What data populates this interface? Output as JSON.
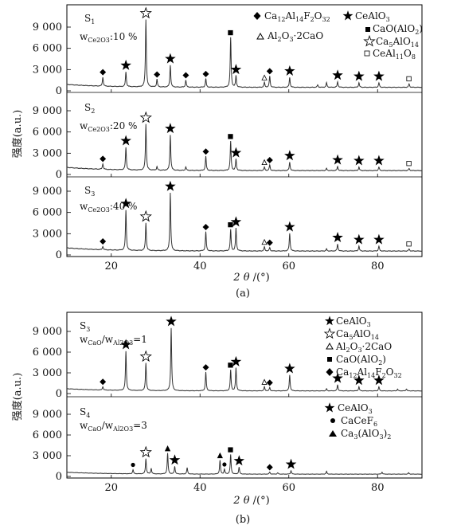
{
  "chart_data": [
    {
      "type": "line",
      "figure_label": "(a)",
      "xlabel": "2θ/(°)",
      "ylabel": "强度(a.u.)",
      "xlim": [
        10,
        90
      ],
      "xticks": [
        "20",
        "40",
        "60",
        "80"
      ],
      "ylim": [
        0,
        10500
      ],
      "yticks": [
        "0",
        "3 000",
        "6 000",
        "9 000"
      ],
      "legend": {
        "location": "top-right of top panel",
        "entries": [
          {
            "marker": "diamond-filled",
            "label": "Ca12Al14F2O32"
          },
          {
            "marker": "star-filled",
            "label": "CeAlO3"
          },
          {
            "marker": "square-filled",
            "label": "CaO(AlO2)"
          },
          {
            "marker": "triangle-open",
            "label": "Al2O3·2CaO"
          },
          {
            "marker": "star-open",
            "label": "Ca5AlO14"
          },
          {
            "marker": "square-open",
            "label": "CeAl11O8"
          }
        ]
      },
      "series": [
        {
          "name": "S1",
          "annotation": "wCe2O3:10 %",
          "baseline": 900,
          "peaks": [
            {
              "x": 18.1,
              "y": 1300,
              "phase": "Ca12Al14F2O32"
            },
            {
              "x": 23.3,
              "y": 2100,
              "phase": "CeAlO3"
            },
            {
              "x": 27.8,
              "y": 9500,
              "phase": "Ca5AlO14"
            },
            {
              "x": 30.3,
              "y": 1100,
              "phase": "Ca12Al14F2O32"
            },
            {
              "x": 33.3,
              "y": 3100,
              "phase": "CeAlO3"
            },
            {
              "x": 36.8,
              "y": 1000,
              "phase": "Ca12Al14F2O32"
            },
            {
              "x": 41.3,
              "y": 1200,
              "phase": "Ca12Al14F2O32"
            },
            {
              "x": 46.9,
              "y": 7000,
              "phase": "CaO(AlO2)"
            },
            {
              "x": 48.1,
              "y": 1600,
              "phase": "CeAlO3"
            },
            {
              "x": 54.5,
              "y": 700,
              "phase": "Al2O3·2CaO"
            },
            {
              "x": 55.7,
              "y": 1600,
              "phase": "Ca12Al14F2O32"
            },
            {
              "x": 60.2,
              "y": 1400,
              "phase": "CeAlO3"
            },
            {
              "x": 66.5,
              "y": 350,
              "phase": ""
            },
            {
              "x": 68.5,
              "y": 650,
              "phase": ""
            },
            {
              "x": 71.0,
              "y": 800,
              "phase": "CeAlO3"
            },
            {
              "x": 75.8,
              "y": 650,
              "phase": "CeAlO3"
            },
            {
              "x": 80.3,
              "y": 650,
              "phase": "CeAlO3"
            },
            {
              "x": 87.1,
              "y": 500,
              "phase": "CeAl11O8"
            }
          ]
        },
        {
          "name": "S2",
          "annotation": "wCe2O3:20 %",
          "baseline": 1000,
          "peaks": [
            {
              "x": 18.1,
              "y": 800,
              "phase": "Ca12Al14F2O32"
            },
            {
              "x": 23.3,
              "y": 3200,
              "phase": "CeAlO3"
            },
            {
              "x": 27.8,
              "y": 6500,
              "phase": "Ca5AlO14"
            },
            {
              "x": 30.3,
              "y": 500,
              "phase": ""
            },
            {
              "x": 33.3,
              "y": 5000,
              "phase": "CeAlO3"
            },
            {
              "x": 36.8,
              "y": 500,
              "phase": ""
            },
            {
              "x": 41.3,
              "y": 2000,
              "phase": "Ca12Al14F2O32"
            },
            {
              "x": 46.9,
              "y": 4100,
              "phase": "CaO(AlO2)"
            },
            {
              "x": 48.1,
              "y": 1600,
              "phase": "CeAlO3"
            },
            {
              "x": 54.5,
              "y": 500,
              "phase": "Al2O3·2CaO"
            },
            {
              "x": 55.7,
              "y": 800,
              "phase": "Ca12Al14F2O32"
            },
            {
              "x": 60.2,
              "y": 1200,
              "phase": "CeAlO3"
            },
            {
              "x": 68.5,
              "y": 300,
              "phase": ""
            },
            {
              "x": 71.0,
              "y": 600,
              "phase": "CeAlO3"
            },
            {
              "x": 75.8,
              "y": 500,
              "phase": "CeAlO3"
            },
            {
              "x": 80.3,
              "y": 500,
              "phase": "CeAlO3"
            },
            {
              "x": 87.1,
              "y": 300,
              "phase": "CeAl11O8"
            }
          ]
        },
        {
          "name": "S3",
          "annotation": "wCe2O3:40 %",
          "baseline": 1000,
          "peaks": [
            {
              "x": 18.1,
              "y": 500,
              "phase": "Ca12Al14F2O32"
            },
            {
              "x": 23.3,
              "y": 5700,
              "phase": "CeAlO3"
            },
            {
              "x": 27.8,
              "y": 3900,
              "phase": "Ca5AlO14"
            },
            {
              "x": 33.3,
              "y": 8200,
              "phase": "CeAlO3"
            },
            {
              "x": 41.3,
              "y": 2700,
              "phase": "Ca12Al14F2O32"
            },
            {
              "x": 46.9,
              "y": 3000,
              "phase": "CaO(AlO2)"
            },
            {
              "x": 48.1,
              "y": 3200,
              "phase": "CeAlO3"
            },
            {
              "x": 54.5,
              "y": 600,
              "phase": "Al2O3·2CaO"
            },
            {
              "x": 55.7,
              "y": 500,
              "phase": "Ca12Al14F2O32"
            },
            {
              "x": 60.2,
              "y": 2500,
              "phase": "CeAlO3"
            },
            {
              "x": 68.5,
              "y": 300,
              "phase": ""
            },
            {
              "x": 71.0,
              "y": 1000,
              "phase": "CeAlO3"
            },
            {
              "x": 75.8,
              "y": 700,
              "phase": "CeAlO3"
            },
            {
              "x": 80.3,
              "y": 700,
              "phase": "CeAlO3"
            },
            {
              "x": 87.1,
              "y": 300,
              "phase": "CeAl11O8"
            }
          ]
        }
      ]
    },
    {
      "type": "line",
      "figure_label": "(b)",
      "xlabel": "2θ/(°)",
      "ylabel": "强度(a.u.)",
      "xlim": [
        10,
        90
      ],
      "xticks": [
        "20",
        "40",
        "60",
        "80"
      ],
      "ylim": [
        0,
        10500
      ],
      "yticks": [
        "0",
        "3 000",
        "6 000",
        "9 000"
      ],
      "series": [
        {
          "name": "S3",
          "annotation": "wCaO/wAl2O3=1",
          "baseline": 700,
          "legend": {
            "location": "top-right of panel",
            "entries": [
              {
                "marker": "star-filled",
                "label": "CeAlO3"
              },
              {
                "marker": "star-open",
                "label": "Ca5AlO14"
              },
              {
                "marker": "triangle-open",
                "label": "Al2O3·2CaO"
              },
              {
                "marker": "square-filled",
                "label": "CaO(AlO2)"
              },
              {
                "marker": "diamond-filled",
                "label": "Ca12Al14F2O32"
              }
            ]
          },
          "peaks": [
            {
              "x": 18.1,
              "y": 500,
              "phase": "Ca12Al14F2O32"
            },
            {
              "x": 23.3,
              "y": 5700,
              "phase": "CeAlO3"
            },
            {
              "x": 27.8,
              "y": 4000,
              "phase": "Ca5AlO14"
            },
            {
              "x": 33.5,
              "y": 9100,
              "phase": "CeAlO3"
            },
            {
              "x": 41.3,
              "y": 2700,
              "phase": "Ca12Al14F2O32"
            },
            {
              "x": 46.9,
              "y": 3000,
              "phase": "CaO(AlO2)"
            },
            {
              "x": 48.1,
              "y": 3300,
              "phase": "CeAlO3"
            },
            {
              "x": 54.5,
              "y": 600,
              "phase": "Al2O3·2CaO"
            },
            {
              "x": 55.7,
              "y": 500,
              "phase": "Ca12Al14F2O32"
            },
            {
              "x": 60.2,
              "y": 2300,
              "phase": "CeAlO3"
            },
            {
              "x": 68.5,
              "y": 300,
              "phase": ""
            },
            {
              "x": 71.0,
              "y": 900,
              "phase": "CeAlO3"
            },
            {
              "x": 75.8,
              "y": 600,
              "phase": "CeAlO3"
            },
            {
              "x": 80.3,
              "y": 600,
              "phase": "CeAlO3"
            },
            {
              "x": 84.5,
              "y": 250,
              "phase": ""
            },
            {
              "x": 86.5,
              "y": 300,
              "phase": ""
            }
          ]
        },
        {
          "name": "S4",
          "annotation": "wCaO/wAl2O3=3",
          "baseline": 600,
          "legend": {
            "location": "top-right of panel",
            "entries": [
              {
                "marker": "star-filled",
                "label": "CeAlO3"
              },
              {
                "marker": "circle-filled",
                "label": "CaCeF6"
              },
              {
                "marker": "triangle-filled",
                "label": "Ca3(AlO3)2"
              }
            ]
          },
          "peaks": [
            {
              "x": 24.9,
              "y": 600,
              "phase": "CaCeF6"
            },
            {
              "x": 27.8,
              "y": 2200,
              "phase": "Ca5AlO14"
            },
            {
              "x": 29.0,
              "y": 800,
              "phase": ""
            },
            {
              "x": 32.7,
              "y": 3000,
              "phase": "Ca3(AlO3)2"
            },
            {
              "x": 34.3,
              "y": 1100,
              "phase": "CeAlO3"
            },
            {
              "x": 37.1,
              "y": 900,
              "phase": ""
            },
            {
              "x": 44.5,
              "y": 2000,
              "phase": "Ca3(AlO3)2"
            },
            {
              "x": 45.5,
              "y": 700,
              "phase": "CaCeF6"
            },
            {
              "x": 46.9,
              "y": 2800,
              "phase": "CaO(AlO2)"
            },
            {
              "x": 48.8,
              "y": 1000,
              "phase": "CeAlO3"
            },
            {
              "x": 55.7,
              "y": 300,
              "phase": "Ca12Al14F2O32"
            },
            {
              "x": 57.5,
              "y": 200,
              "phase": ""
            },
            {
              "x": 60.5,
              "y": 500,
              "phase": "CeAlO3"
            },
            {
              "x": 68.5,
              "y": 400,
              "phase": ""
            },
            {
              "x": 81.0,
              "y": 300,
              "phase": ""
            },
            {
              "x": 87.0,
              "y": 200,
              "phase": ""
            }
          ]
        }
      ]
    }
  ]
}
